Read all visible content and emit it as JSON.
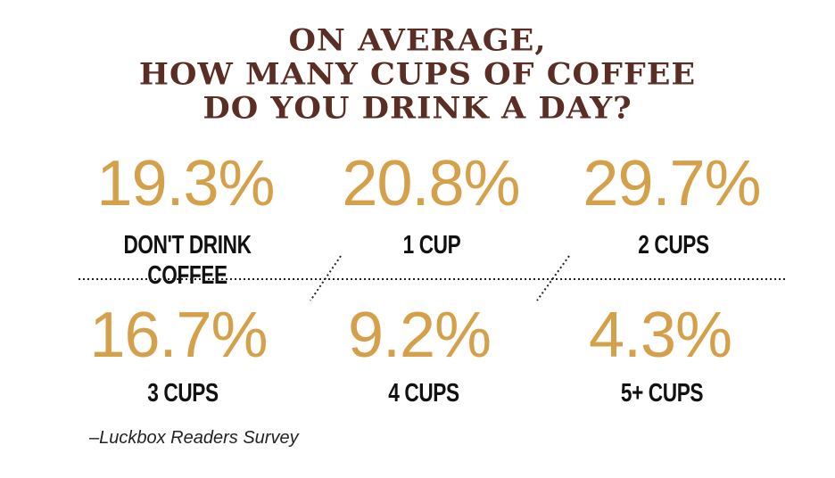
{
  "colors": {
    "title": "#5a2e24",
    "value": "#d4a04a",
    "label": "#111111"
  },
  "chart_data": {
    "type": "table",
    "title": [
      "ON AVERAGE,",
      "HOW MANY CUPS OF COFFEE",
      "DO YOU DRINK A DAY?"
    ],
    "categories": [
      "DON'T DRINK COFFEE",
      "1 CUP",
      "2 CUPS",
      "3 CUPS",
      "4 CUPS",
      "5+ CUPS"
    ],
    "values": [
      19.3,
      20.8,
      29.7,
      16.7,
      9.2,
      4.3
    ],
    "value_labels": [
      "19.3%",
      "20.8%",
      "29.7%",
      "16.7%",
      "9.2%",
      "4.3%"
    ],
    "source": "–Luckbox Readers Survey"
  }
}
